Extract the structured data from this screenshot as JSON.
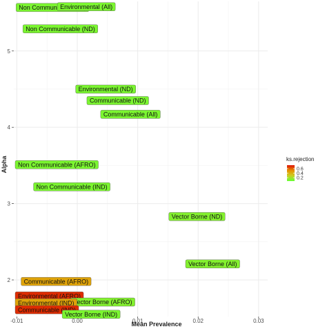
{
  "chart_data": {
    "type": "scatter",
    "title": "",
    "xlabel": "Mean Prevalence",
    "ylabel": "Alpha",
    "xlim": [
      -0.0105,
      0.0315
    ],
    "ylim": [
      1.52,
      5.65
    ],
    "x_ticks": [
      -0.01,
      0.0,
      0.01,
      0.02,
      0.03
    ],
    "x_tick_labels": [
      "-0.01",
      "0.00",
      "0.01",
      "0.02",
      "0.03"
    ],
    "y_ticks": [
      2,
      3,
      4,
      5
    ],
    "y_tick_labels": [
      "2",
      "3",
      "4",
      "5"
    ],
    "grid": true,
    "legend": {
      "title": "ks.rejection",
      "type": "colorbar",
      "placement": "right",
      "range": [
        0.05,
        0.75
      ],
      "ticks": [
        0.2,
        0.4,
        0.6
      ],
      "tick_labels": [
        "0.2",
        "0.4",
        "0.6"
      ],
      "colors": [
        "#66ff33",
        "#cccc22",
        "#e69500",
        "#dd1100"
      ]
    },
    "points": [
      {
        "label": "Non Communicable (All)",
        "x": -0.0041,
        "y": 5.57,
        "ks": 0.1
      },
      {
        "label": "Environmental (All)",
        "x": 0.0015,
        "y": 5.58,
        "ks": 0.1
      },
      {
        "label": "Non Communicable (ND)",
        "x": -0.0028,
        "y": 5.29,
        "ks": 0.1
      },
      {
        "label": "Environmental (ND)",
        "x": 0.0047,
        "y": 4.5,
        "ks": 0.1
      },
      {
        "label": "Communicable (ND)",
        "x": 0.0067,
        "y": 4.35,
        "ks": 0.1
      },
      {
        "label": "Communicable (All)",
        "x": 0.0088,
        "y": 4.17,
        "ks": 0.1
      },
      {
        "label": "Non Communicable (AFRO)",
        "x": -0.0049,
        "y": 3.51,
        "ks": 0.1
      },
      {
        "label": "Non Communicable (IND)",
        "x": -0.0009,
        "y": 3.22,
        "ks": 0.1
      },
      {
        "label": "Vector Borne (ND)",
        "x": 0.0198,
        "y": 2.83,
        "ks": 0.12
      },
      {
        "label": "Vector Borne (All)",
        "x": 0.0224,
        "y": 2.21,
        "ks": 0.12
      },
      {
        "label": "Communicable (AFRO)",
        "x": -0.0035,
        "y": 1.98,
        "ks": 0.45
      },
      {
        "label": "Environmental (AFRO)",
        "x": -0.0048,
        "y": 1.79,
        "ks": 0.7
      },
      {
        "label": "Vector Borne (AFRO)",
        "x": 0.0042,
        "y": 1.71,
        "ks": 0.12
      },
      {
        "label": "Environmental (IND)",
        "x": -0.0082,
        "y": 1.7,
        "ks": 0.45
      },
      {
        "label": "Communicable (IND)",
        "x": -0.0055,
        "y": 1.61,
        "ks": 0.7
      },
      {
        "label": "Vector Borne (IND)",
        "x": 0.0023,
        "y": 1.55,
        "ks": 0.1
      }
    ]
  }
}
